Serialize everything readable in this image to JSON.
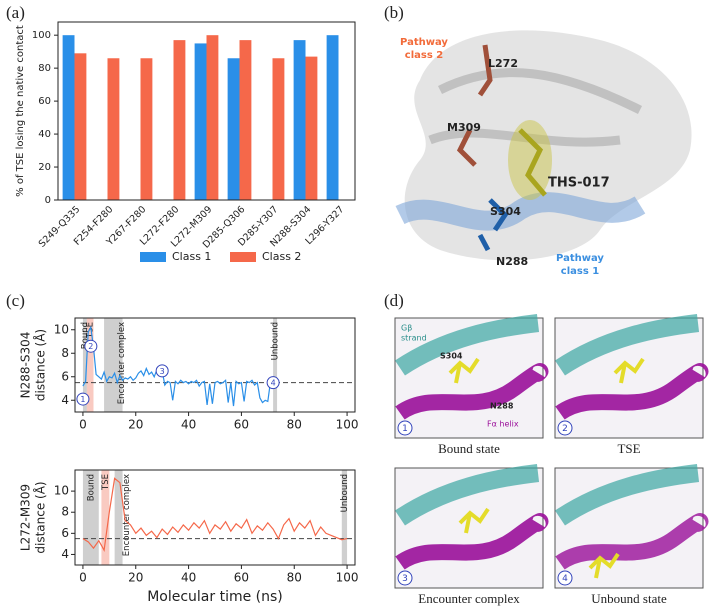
{
  "panel_labels": [
    "(a)",
    "(b)",
    "(c)",
    "(d)"
  ],
  "chart_data": [
    {
      "type": "bar",
      "ylabel": "% of TSE losing the native contact",
      "categories": [
        "S249-Q335",
        "F254-F280",
        "Y267-F280",
        "L272-F280",
        "L272-M309",
        "D285-Q306",
        "D285-Y307",
        "N288-S304",
        "L296-Y327"
      ],
      "series": [
        {
          "name": "Class 1",
          "color": "#2a8fe8",
          "values": [
            100,
            null,
            null,
            null,
            95,
            86,
            null,
            97,
            100
          ]
        },
        {
          "name": "Class 2",
          "color": "#f5684a",
          "values": [
            89,
            86,
            86,
            97,
            100,
            97,
            86,
            87,
            null
          ]
        }
      ],
      "ylim": [
        0,
        108
      ],
      "yticks": [
        0,
        20,
        40,
        60,
        80,
        100
      ]
    },
    {
      "type": "line",
      "ylabel": [
        "N288-S304",
        "distance (Å)"
      ],
      "color": "#2a8fe8",
      "x": [
        0,
        1,
        2,
        3,
        4,
        5,
        6,
        7,
        8,
        9,
        10,
        11,
        12,
        13,
        14,
        15,
        16,
        17,
        18,
        19,
        20,
        21,
        22,
        23,
        24,
        25,
        26,
        27,
        28,
        29,
        30,
        31,
        32,
        33,
        34,
        35,
        36,
        37,
        38,
        39,
        40,
        41,
        42,
        43,
        44,
        45,
        46,
        47,
        48,
        49,
        50,
        51,
        52,
        53,
        54,
        55,
        56,
        57,
        58,
        59,
        60,
        61,
        62,
        63,
        64,
        65,
        66,
        67,
        68,
        69,
        70,
        71,
        72
      ],
      "values": [
        5.2,
        5.6,
        9.8,
        10.2,
        8.5,
        6.2,
        6.0,
        5.8,
        6.4,
        5.6,
        6.0,
        5.9,
        6.3,
        5.5,
        6.1,
        5.7,
        5.9,
        5.8,
        6.0,
        5.7,
        5.9,
        6.3,
        6.5,
        6.1,
        6.7,
        6.2,
        6.4,
        6.0,
        6.6,
        6.3,
        6.5,
        5.3,
        5.6,
        5.5,
        4.0,
        5.6,
        5.4,
        5.7,
        5.5,
        5.6,
        5.4,
        5.6,
        5.5,
        5.7,
        5.2,
        5.5,
        5.6,
        3.6,
        5.4,
        3.7,
        5.5,
        5.6,
        5.4,
        5.5,
        5.7,
        3.8,
        5.5,
        3.5,
        5.6,
        5.4,
        5.5,
        3.9,
        5.6,
        5.5,
        5.7,
        5.3,
        5.5,
        4.2,
        3.8,
        4.0,
        3.9,
        5.6,
        5.7
      ],
      "xlim": [
        -3,
        103
      ],
      "xticks": [
        0,
        20,
        40,
        60,
        80,
        100
      ],
      "ylim": [
        3,
        11
      ],
      "yticks": [
        4,
        6,
        8,
        10
      ],
      "reference_line": 5.5,
      "regions": [
        {
          "label": "Bound",
          "start": 0,
          "end": 1.5,
          "color": "#bbbbbb"
        },
        {
          "label": "TSE",
          "start": 1.5,
          "end": 4,
          "color": "#f7b3a6"
        },
        {
          "label": "Encounter complex",
          "start": 8,
          "end": 15,
          "color": "#bbbbbb"
        },
        {
          "label": "Unbound",
          "start": 72,
          "end": 73.5,
          "color": "#bbbbbb"
        }
      ],
      "markers": [
        {
          "label": "1",
          "x": 0,
          "y": 4.1
        },
        {
          "label": "2",
          "x": 3,
          "y": 8.6
        },
        {
          "label": "3",
          "x": 30,
          "y": 6.5
        },
        {
          "label": "4",
          "x": 72,
          "y": 5.5
        }
      ]
    },
    {
      "type": "line",
      "ylabel": [
        "L272-M309",
        "distance (Å)"
      ],
      "xlabel": "Molecular time (ns)",
      "color": "#f5684a",
      "x": [
        0,
        2,
        4,
        6,
        8,
        10,
        12,
        14,
        16,
        18,
        20,
        22,
        24,
        26,
        28,
        30,
        32,
        34,
        36,
        38,
        40,
        42,
        44,
        46,
        48,
        50,
        52,
        54,
        56,
        58,
        60,
        62,
        64,
        66,
        68,
        70,
        72,
        74,
        76,
        78,
        80,
        82,
        84,
        86,
        88,
        90,
        92,
        94,
        96,
        98,
        100
      ],
      "values": [
        5.5,
        5.2,
        4.6,
        5.3,
        4.4,
        8.0,
        11.2,
        10.8,
        7.2,
        6.8,
        6.0,
        6.5,
        5.8,
        6.2,
        5.6,
        6.4,
        5.9,
        6.6,
        6.1,
        6.8,
        6.3,
        7.0,
        6.5,
        7.2,
        6.0,
        6.8,
        6.4,
        7.1,
        6.2,
        6.9,
        6.5,
        7.3,
        6.0,
        6.7,
        6.3,
        7.0,
        6.4,
        5.5,
        6.8,
        7.4,
        6.2,
        7.0,
        6.5,
        7.2,
        5.8,
        6.6,
        6.0,
        5.8,
        5.6,
        5.4,
        5.5
      ],
      "xlim": [
        -3,
        103
      ],
      "xticks": [
        0,
        20,
        40,
        60,
        80,
        100
      ],
      "ylim": [
        3,
        12
      ],
      "yticks": [
        4,
        6,
        8,
        10
      ],
      "reference_line": 5.5,
      "regions": [
        {
          "label": "Bound",
          "start": 0,
          "end": 6,
          "color": "#bbbbbb"
        },
        {
          "label": "TSE",
          "start": 7,
          "end": 10,
          "color": "#f7b3a6"
        },
        {
          "label": "Encounter complex",
          "start": 12,
          "end": 15,
          "color": "#bbbbbb"
        },
        {
          "label": "Unbound",
          "start": 98,
          "end": 100,
          "color": "#bbbbbb"
        }
      ],
      "markers": []
    }
  ],
  "structure": {
    "pathway2": [
      "Pathway",
      "class 2"
    ],
    "residues": [
      "L272",
      "M309",
      "S304",
      "N288"
    ],
    "ligand": "THS-017",
    "pathway1": [
      "Pathway",
      "class 1"
    ]
  },
  "snapshots": [
    {
      "number": "1",
      "caption": "Bound state",
      "labels": [
        "Gβ",
        "strand",
        "S304",
        "N288",
        "Fα helix"
      ]
    },
    {
      "number": "2",
      "caption": "TSE",
      "labels": []
    },
    {
      "number": "3",
      "caption": "Encounter complex",
      "labels": []
    },
    {
      "number": "4",
      "caption": "Unbound state",
      "labels": []
    }
  ]
}
